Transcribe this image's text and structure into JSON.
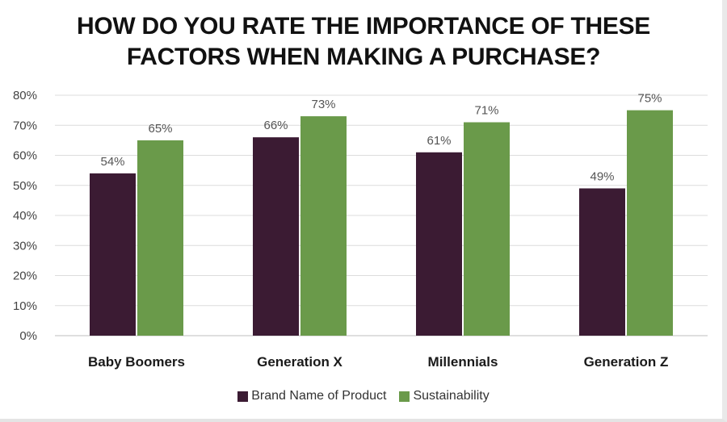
{
  "title_lines": [
    "HOW DO YOU RATE THE IMPORTANCE OF THESE",
    "FACTORS WHEN MAKING A PURCHASE?"
  ],
  "chart_data": {
    "type": "bar",
    "title": "HOW DO YOU RATE THE IMPORTANCE OF THESE FACTORS WHEN MAKING A PURCHASE?",
    "categories": [
      "Baby Boomers",
      "Generation X",
      "Millennials",
      "Generation Z"
    ],
    "series": [
      {
        "name": "Brand Name of Product",
        "values": [
          54,
          66,
          61,
          49
        ],
        "labels": [
          "54%",
          "66%",
          "61%",
          "49%"
        ],
        "color": "#3b1b33"
      },
      {
        "name": "Sustainability",
        "values": [
          65,
          73,
          71,
          75
        ],
        "labels": [
          "65%",
          "73%",
          "71%",
          "75%"
        ],
        "color": "#6a9a4a"
      }
    ],
    "yticks": [
      "0%",
      "10%",
      "20%",
      "30%",
      "40%",
      "50%",
      "60%",
      "70%",
      "80%"
    ],
    "ylim": [
      0,
      80
    ],
    "grid": true,
    "legend_position": "bottom"
  }
}
